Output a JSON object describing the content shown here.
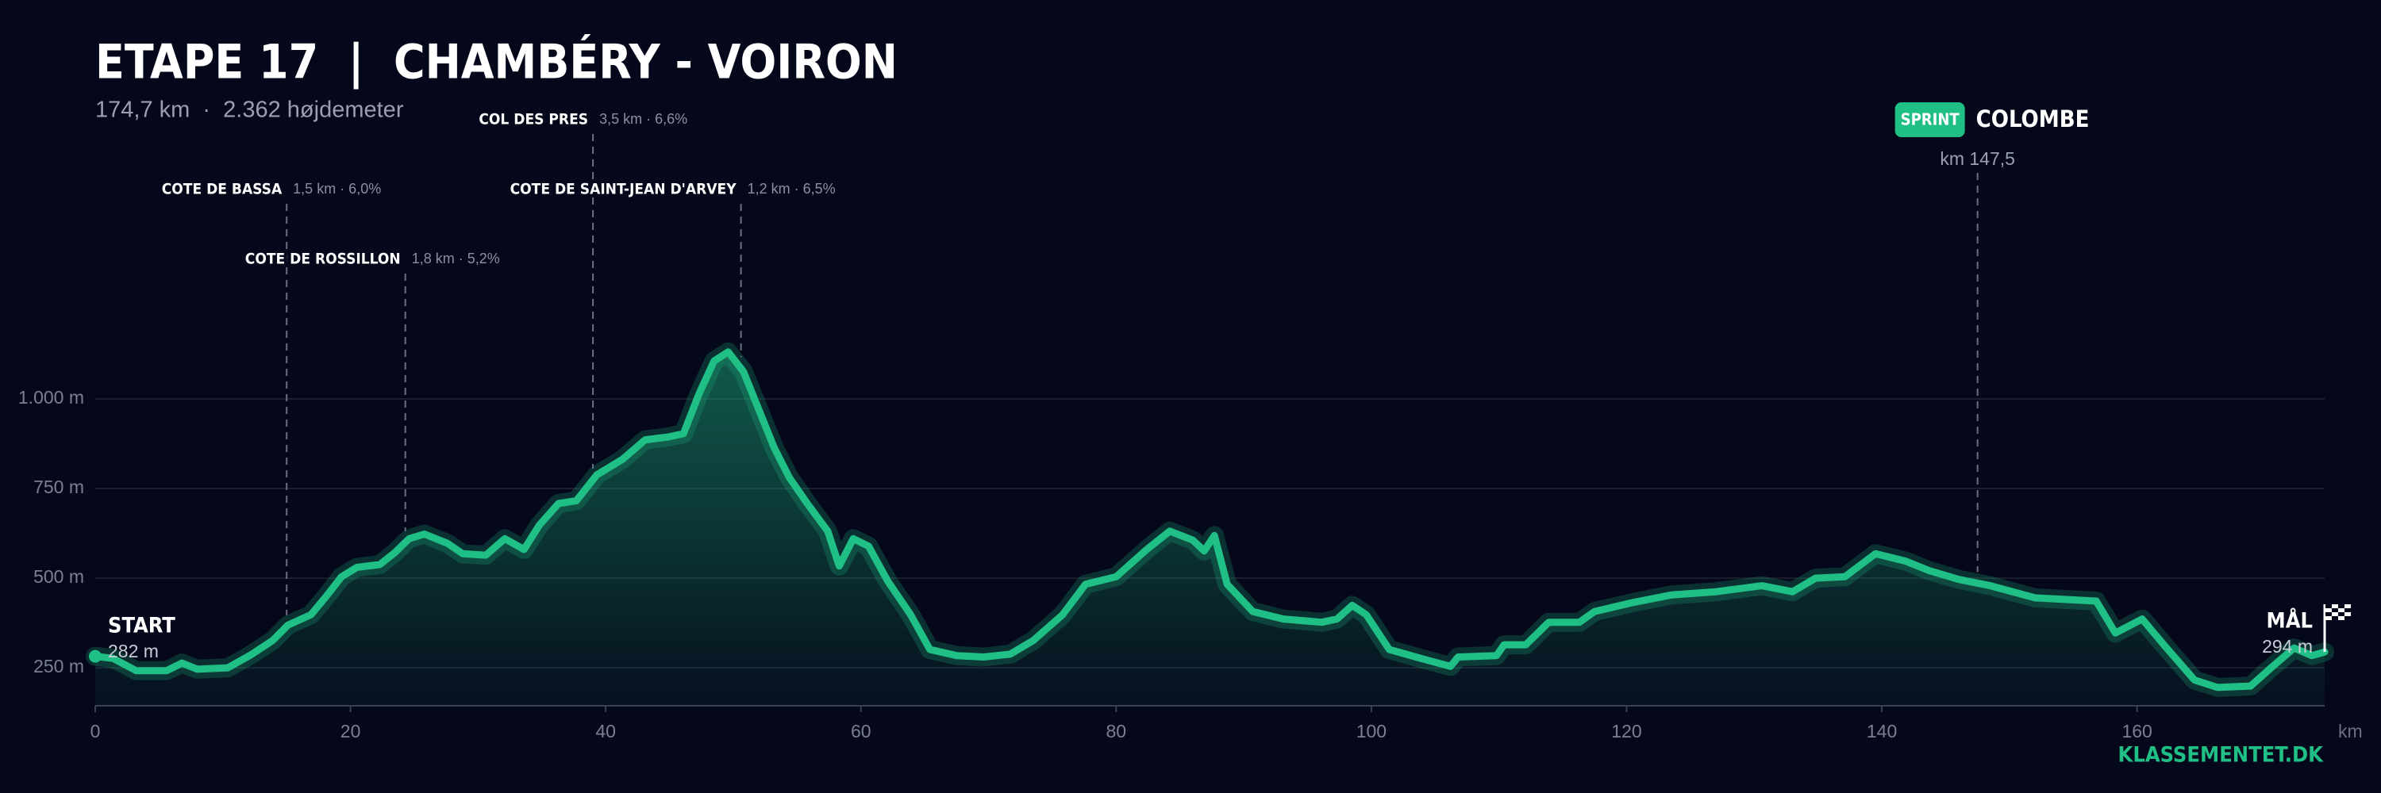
{
  "chart_data": {
    "type": "area",
    "title": "ETAPE 17  |  CHAMBÉRY - VOIRON",
    "subtitle": "174,7 km  ·  2.362 højdemeter",
    "color": "#1fbf86",
    "x_label": "km",
    "brand": "KLASSEMENTET.DK",
    "start_label": "START",
    "finish_label": "MÅL",
    "xlim": [
      0,
      174.7
    ],
    "xticks": [
      0,
      20,
      40,
      60,
      80,
      100,
      120,
      140,
      160
    ],
    "ylim": [
      144,
      1500
    ],
    "yticks": [
      {
        "value": 250,
        "label": "250 m"
      },
      {
        "value": 500,
        "label": "500 m"
      },
      {
        "value": 750,
        "label": "750 m"
      },
      {
        "value": 1000,
        "label": "1.000 m"
      }
    ],
    "grid": true,
    "x": [
      0,
      1.4,
      3.2,
      5.6,
      6.8,
      8,
      10.4,
      12.1,
      13.9,
      15.1,
      16.9,
      18.1,
      19.3,
      20.5,
      22.3,
      23.5,
      24.6,
      25.8,
      27.6,
      28.8,
      30.6,
      32.1,
      33.6,
      34.8,
      36.3,
      37.7,
      39.3,
      41.3,
      43.1,
      44.9,
      46.1,
      47.3,
      48.5,
      49.6,
      50.8,
      52,
      53.2,
      54.4,
      55.8,
      57.4,
      58.3,
      59.4,
      60.6,
      62.1,
      63.9,
      65.4,
      67.5,
      69.6,
      71.7,
      73.5,
      75.8,
      77.6,
      80,
      82.4,
      84.2,
      86,
      86.9,
      87.7,
      88.7,
      90.7,
      93.1,
      96.1,
      97.3,
      98.5,
      99.6,
      101.4,
      104.4,
      106.2,
      106.8,
      109.8,
      110.4,
      112.1,
      113.9,
      116.3,
      117.5,
      120.5,
      123.5,
      127,
      130.6,
      133,
      134.8,
      137.1,
      139.5,
      141.9,
      143.7,
      146.1,
      148.5,
      152,
      156.8,
      158.3,
      160.4,
      162.1,
      164.5,
      166.3,
      168.9,
      170.5,
      172.3,
      173.7,
      174.7
    ],
    "values": [
      282,
      276,
      242,
      242,
      263,
      246,
      250,
      284,
      326,
      369,
      398,
      449,
      504,
      530,
      538,
      572,
      610,
      623,
      597,
      568,
      564,
      610,
      580,
      648,
      708,
      716,
      788,
      831,
      886,
      894,
      903,
      1013,
      1106,
      1131,
      1076,
      970,
      864,
      780,
      708,
      631,
      534,
      610,
      589,
      492,
      398,
      301,
      284,
      280,
      288,
      326,
      398,
      483,
      504,
      580,
      631,
      606,
      576,
      619,
      483,
      407,
      386,
      377,
      386,
      424,
      398,
      301,
      271,
      254,
      280,
      284,
      314,
      314,
      377,
      377,
      407,
      432,
      453,
      462,
      479,
      462,
      500,
      504,
      568,
      547,
      521,
      496,
      479,
      445,
      436,
      347,
      386,
      314,
      216,
      195,
      199,
      250,
      305,
      284,
      294
    ],
    "value_labels": [
      "282 m",
      null,
      null,
      null,
      null,
      null,
      null,
      null,
      null,
      null,
      null,
      null,
      null,
      null,
      null,
      null,
      null,
      null,
      null,
      null,
      null,
      null,
      null,
      null,
      null,
      null,
      null,
      null,
      null,
      null,
      null,
      null,
      null,
      null,
      null,
      null,
      null,
      null,
      null,
      null,
      null,
      null,
      null,
      null,
      null,
      null,
      null,
      null,
      null,
      null,
      null,
      null,
      null,
      null,
      null,
      null,
      null,
      null,
      null,
      null,
      null,
      null,
      null,
      null,
      null,
      null,
      null,
      null,
      null,
      null,
      null,
      null,
      null,
      null,
      null,
      null,
      null,
      null,
      null,
      null,
      null,
      null,
      null,
      null,
      null,
      null,
      null,
      null,
      null,
      null,
      null,
      null,
      null,
      null,
      null,
      null,
      null,
      null,
      "294 m"
    ],
    "climbs": [
      {
        "name": "COTE DE BASSA",
        "stats": "1,5 km · 6,0%",
        "km": 15.0
      },
      {
        "name": "COTE DE ROSSILLON",
        "stats": "1,8 km · 5,2%",
        "km": 24.3
      },
      {
        "name": "COL DES PRES",
        "stats": "3,5 km · 6,6%",
        "km": 39.0
      },
      {
        "name": "COTE DE SAINT-JEAN D'ARVEY",
        "stats": "1,2 km · 6,5%",
        "km": 50.6
      }
    ],
    "sprint": {
      "badge": "SPRINT",
      "name": "COLOMBE",
      "km": 147.5,
      "km_label": "km 147,5"
    }
  }
}
